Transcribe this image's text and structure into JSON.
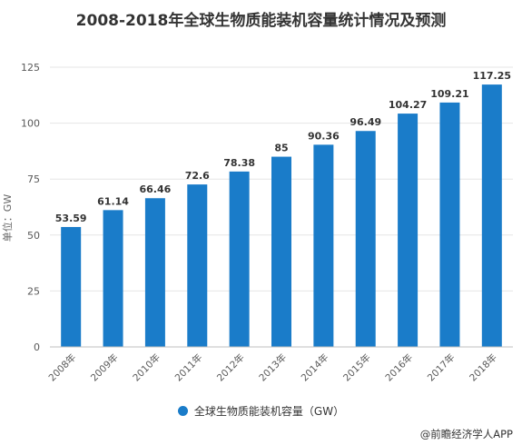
{
  "chart_data": {
    "type": "bar",
    "title": "2008-2018年全球生物质能装机容量统计情况及预测",
    "ylabel": "单位：GW",
    "xlabel": "",
    "categories": [
      "2008年",
      "2009年",
      "2010年",
      "2011年",
      "2012年",
      "2013年",
      "2014年",
      "2015年",
      "2016年",
      "2017年",
      "2018年"
    ],
    "series": [
      {
        "name": "全球生物质能装机容量（GW）",
        "values": [
          53.59,
          61.14,
          66.46,
          72.6,
          78.38,
          85,
          90.36,
          96.49,
          104.27,
          109.21,
          117.25
        ],
        "labels": [
          "53.59",
          "61.14",
          "66.46",
          "72.6",
          "78.38",
          "85",
          "90.36",
          "96.49",
          "104.27",
          "109.21",
          "117.25"
        ]
      }
    ],
    "ylim": [
      0,
      125
    ],
    "yticks": [
      0,
      25,
      50,
      75,
      100,
      125
    ],
    "grid": true,
    "legend_position": "bottom",
    "bar_color": "#1a7cc9"
  },
  "source": "@前瞻经济学人APP"
}
